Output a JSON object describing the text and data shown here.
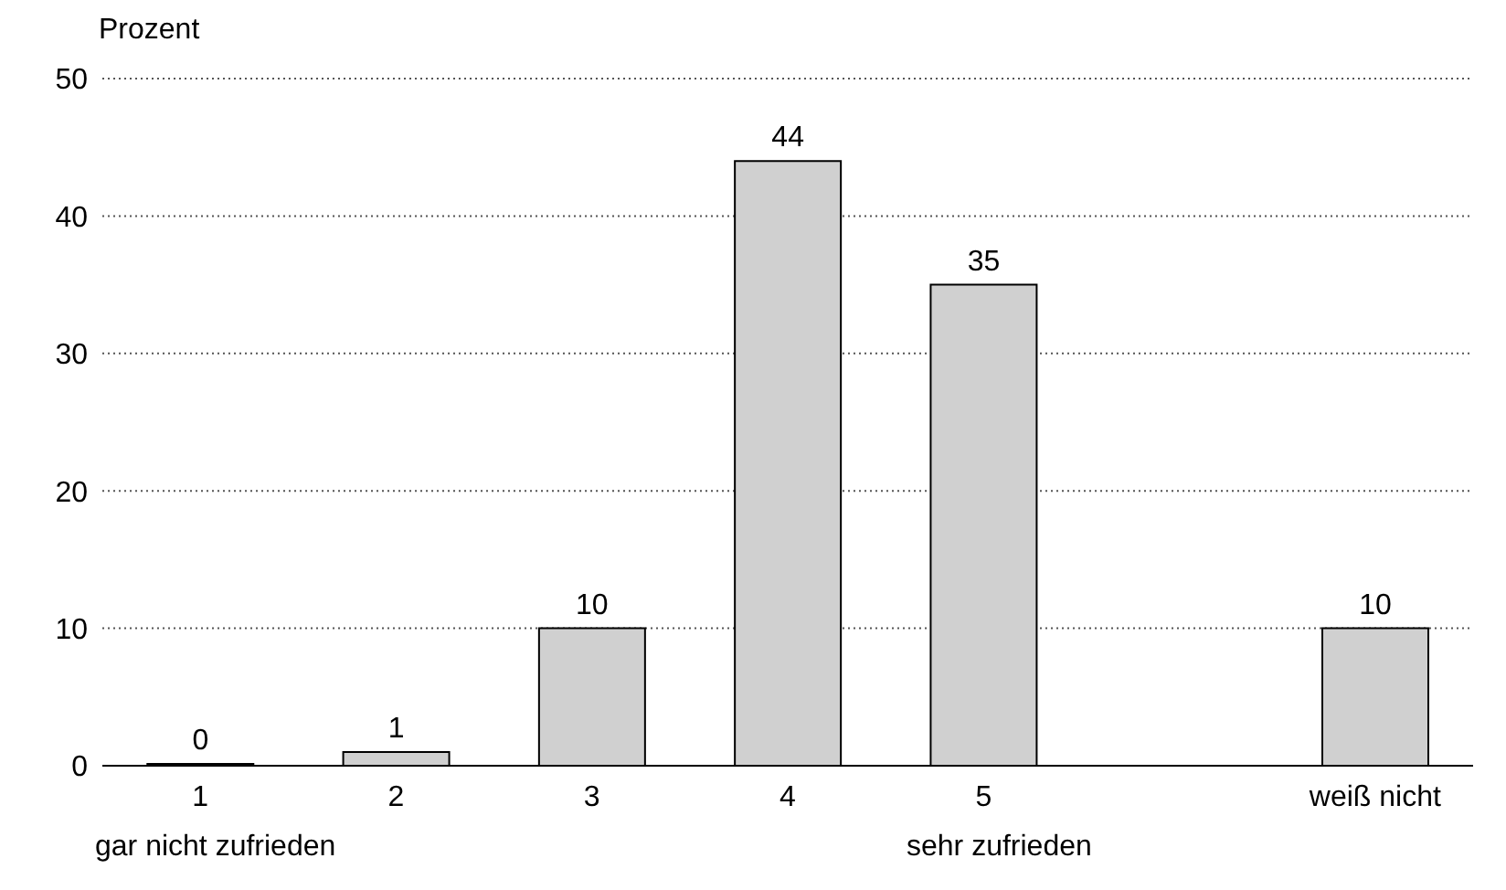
{
  "chart_data": {
    "type": "bar",
    "ylabel": "Prozent",
    "categories": [
      "1",
      "2",
      "3",
      "4",
      "5",
      null,
      "weiß nicht"
    ],
    "values": [
      0,
      1,
      10,
      44,
      35,
      null,
      10
    ],
    "color": "#d0d0d0",
    "annotations": [
      "gar nicht zufrieden",
      "sehr zufrieden"
    ],
    "ylim": [
      0,
      50
    ],
    "yticks": [
      0,
      10,
      20,
      30,
      40,
      50
    ],
    "grid": "y",
    "data_labels": true
  }
}
